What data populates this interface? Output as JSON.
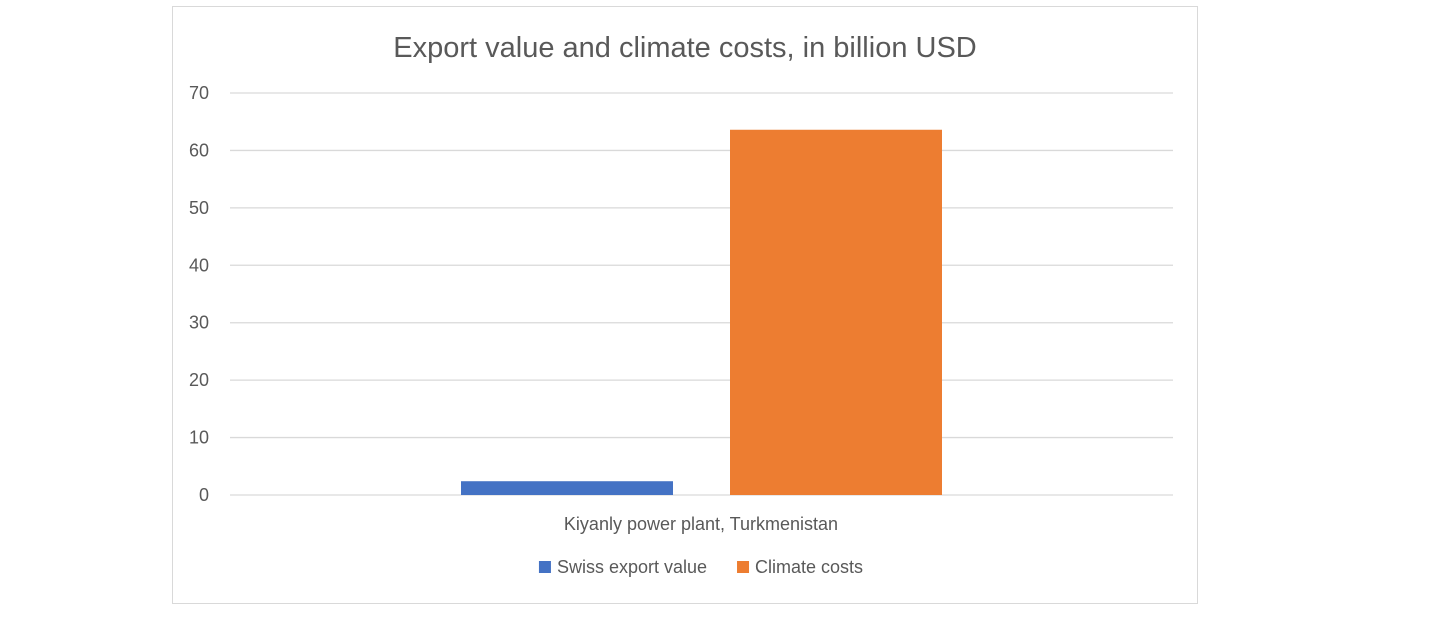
{
  "chart_data": {
    "type": "bar",
    "title": "Export value and climate costs, in billion USD",
    "categories": [
      "Kiyanly power plant, Turkmenistan"
    ],
    "series": [
      {
        "name": "Swiss export value",
        "values": [
          2.4
        ],
        "color": "#4472c4"
      },
      {
        "name": "Climate costs",
        "values": [
          63.6
        ],
        "color": "#ed7d31"
      }
    ],
    "ylim": [
      0,
      70
    ],
    "yticks": [
      0,
      10,
      20,
      30,
      40,
      50,
      60,
      70
    ],
    "grid": true,
    "legend_position": "bottom"
  }
}
